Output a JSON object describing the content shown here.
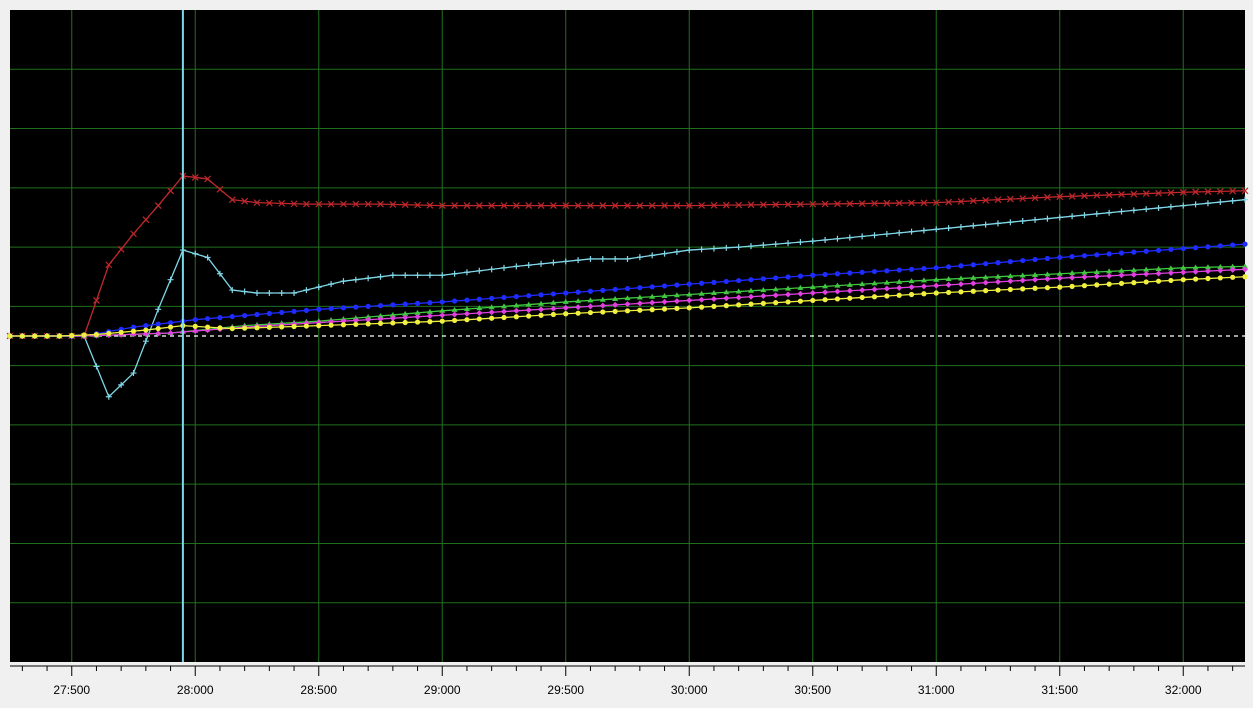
{
  "chart_data": {
    "type": "line",
    "title": "",
    "xlabel": "",
    "ylabel": "",
    "x_tick_labels": [
      "27:500",
      "28:000",
      "28:500",
      "29:000",
      "29:500",
      "30:000",
      "30:500",
      "31:000",
      "31:500",
      "32:000"
    ],
    "x_tick_values": [
      27.5,
      28.0,
      28.5,
      29.0,
      29.5,
      30.0,
      30.5,
      31.0,
      31.5,
      32.0
    ],
    "xlim": [
      27.25,
      32.25
    ],
    "ylim": [
      -11,
      11
    ],
    "grid": true,
    "legend": "none",
    "background_color": "#000000",
    "grid_color": "#1f6f1f",
    "cursor": {
      "x": 27.95,
      "color": "#7fd8e8"
    },
    "baseline": {
      "y": 0,
      "color": "#ffffff",
      "style": "dashed"
    },
    "series": [
      {
        "color": "#c0282c",
        "marker": "x",
        "points": [
          [
            27.25,
            0
          ],
          [
            27.35,
            0
          ],
          [
            27.45,
            0
          ],
          [
            27.55,
            0
          ],
          [
            27.65,
            2.4
          ],
          [
            27.75,
            3.45
          ],
          [
            27.85,
            4.4
          ],
          [
            27.95,
            5.4
          ],
          [
            28.05,
            5.3
          ],
          [
            28.15,
            4.6
          ],
          [
            28.25,
            4.5
          ],
          [
            28.45,
            4.45
          ],
          [
            28.75,
            4.45
          ],
          [
            29.0,
            4.4
          ],
          [
            29.5,
            4.4
          ],
          [
            30.0,
            4.4
          ],
          [
            30.5,
            4.45
          ],
          [
            31.0,
            4.5
          ],
          [
            31.5,
            4.7
          ],
          [
            32.0,
            4.85
          ],
          [
            32.25,
            4.9
          ]
        ]
      },
      {
        "color": "#7fd8e8",
        "marker": "plus",
        "points": [
          [
            27.25,
            0
          ],
          [
            27.45,
            0
          ],
          [
            27.55,
            0
          ],
          [
            27.65,
            -2.05
          ],
          [
            27.75,
            -1.25
          ],
          [
            27.85,
            0.9
          ],
          [
            27.95,
            2.9
          ],
          [
            28.05,
            2.65
          ],
          [
            28.15,
            1.55
          ],
          [
            28.25,
            1.45
          ],
          [
            28.4,
            1.45
          ],
          [
            28.6,
            1.85
          ],
          [
            28.8,
            2.05
          ],
          [
            29.0,
            2.05
          ],
          [
            29.3,
            2.35
          ],
          [
            29.6,
            2.6
          ],
          [
            29.75,
            2.6
          ],
          [
            30.0,
            2.9
          ],
          [
            30.2,
            3.0
          ],
          [
            30.5,
            3.2
          ],
          [
            31.0,
            3.6
          ],
          [
            31.5,
            4.0
          ],
          [
            32.0,
            4.4
          ],
          [
            32.25,
            4.6
          ]
        ]
      },
      {
        "color": "#1f2cff",
        "marker": "dot",
        "points": [
          [
            27.25,
            0
          ],
          [
            27.55,
            0
          ],
          [
            27.75,
            0.3
          ],
          [
            28.0,
            0.55
          ],
          [
            28.5,
            0.9
          ],
          [
            29.0,
            1.15
          ],
          [
            29.5,
            1.45
          ],
          [
            30.0,
            1.75
          ],
          [
            30.5,
            2.05
          ],
          [
            31.0,
            2.3
          ],
          [
            31.5,
            2.65
          ],
          [
            32.0,
            2.95
          ],
          [
            32.25,
            3.1
          ]
        ]
      },
      {
        "color": "#40c840",
        "marker": "triangle",
        "points": [
          [
            27.25,
            0
          ],
          [
            27.55,
            0
          ],
          [
            27.9,
            0.1
          ],
          [
            28.2,
            0.35
          ],
          [
            28.5,
            0.5
          ],
          [
            29.0,
            0.85
          ],
          [
            29.5,
            1.15
          ],
          [
            30.0,
            1.4
          ],
          [
            30.5,
            1.65
          ],
          [
            31.0,
            1.9
          ],
          [
            31.5,
            2.1
          ],
          [
            32.0,
            2.3
          ],
          [
            32.25,
            2.35
          ]
        ]
      },
      {
        "color": "#e040e0",
        "marker": "diamond",
        "points": [
          [
            27.25,
            0
          ],
          [
            27.55,
            0
          ],
          [
            27.9,
            0.1
          ],
          [
            28.2,
            0.3
          ],
          [
            28.5,
            0.45
          ],
          [
            29.0,
            0.7
          ],
          [
            29.5,
            0.95
          ],
          [
            30.0,
            1.2
          ],
          [
            30.5,
            1.45
          ],
          [
            31.0,
            1.7
          ],
          [
            31.5,
            1.95
          ],
          [
            32.0,
            2.15
          ],
          [
            32.25,
            2.25
          ]
        ]
      },
      {
        "color": "#f0f040",
        "marker": "dot",
        "points": [
          [
            27.25,
            0
          ],
          [
            27.45,
            0
          ],
          [
            27.6,
            0.05
          ],
          [
            27.8,
            0.2
          ],
          [
            27.95,
            0.35
          ],
          [
            28.15,
            0.25
          ],
          [
            28.5,
            0.35
          ],
          [
            29.0,
            0.5
          ],
          [
            29.5,
            0.75
          ],
          [
            30.0,
            0.95
          ],
          [
            30.5,
            1.2
          ],
          [
            31.0,
            1.45
          ],
          [
            31.5,
            1.65
          ],
          [
            32.0,
            1.9
          ],
          [
            32.25,
            2.0
          ]
        ]
      }
    ]
  }
}
